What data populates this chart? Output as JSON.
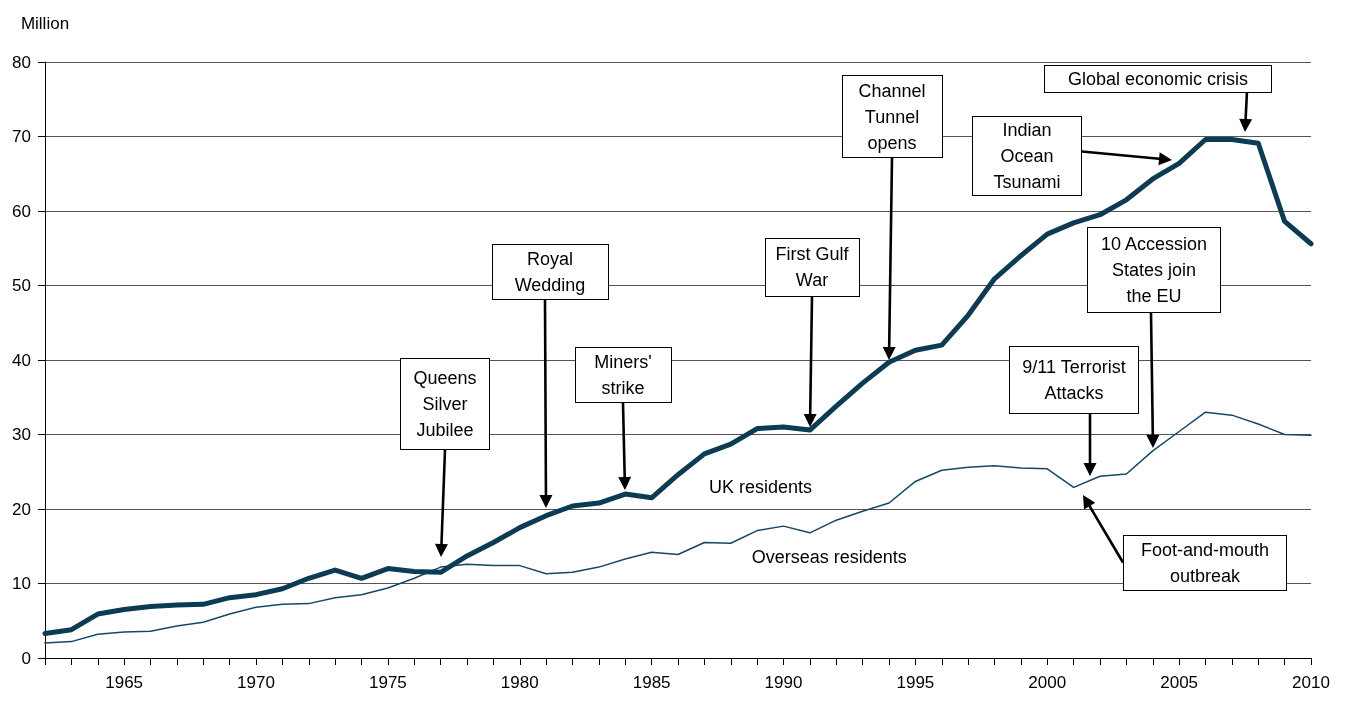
{
  "chart_data": {
    "type": "line",
    "ylabel": "Million",
    "x": [
      1962,
      1963,
      1964,
      1965,
      1966,
      1967,
      1968,
      1969,
      1970,
      1971,
      1972,
      1973,
      1974,
      1975,
      1976,
      1977,
      1978,
      1979,
      1980,
      1981,
      1982,
      1983,
      1984,
      1985,
      1986,
      1987,
      1988,
      1989,
      1990,
      1991,
      1992,
      1993,
      1994,
      1995,
      1996,
      1997,
      1998,
      1999,
      2000,
      2001,
      2002,
      2003,
      2004,
      2005,
      2006,
      2007,
      2008,
      2009,
      2010
    ],
    "series": [
      {
        "name": "UK residents",
        "color": "#0c3b54",
        "values": [
          3.3,
          3.8,
          5.9,
          6.5,
          6.9,
          7.1,
          7.2,
          8.1,
          8.5,
          9.3,
          10.7,
          11.8,
          10.7,
          12.0,
          11.6,
          11.5,
          13.7,
          15.5,
          17.5,
          19.1,
          20.4,
          20.8,
          22.0,
          21.5,
          24.6,
          27.4,
          28.7,
          30.8,
          31.0,
          30.6,
          33.8,
          36.9,
          39.7,
          41.3,
          42.0,
          46.0,
          50.9,
          54.0,
          56.9,
          58.4,
          59.5,
          61.5,
          64.3,
          66.4,
          69.6,
          69.6,
          69.1,
          58.6,
          55.6
        ]
      },
      {
        "name": "Overseas residents",
        "color": "#154866",
        "values": [
          2.0,
          2.2,
          3.2,
          3.5,
          3.6,
          4.3,
          4.8,
          5.9,
          6.8,
          7.2,
          7.3,
          8.1,
          8.5,
          9.4,
          10.7,
          12.2,
          12.6,
          12.4,
          12.4,
          11.3,
          11.5,
          12.2,
          13.3,
          14.2,
          13.9,
          15.5,
          15.4,
          17.1,
          17.7,
          16.8,
          18.5,
          19.7,
          20.8,
          23.7,
          25.2,
          25.6,
          25.8,
          25.5,
          25.4,
          22.9,
          24.4,
          24.7,
          27.8,
          30.4,
          33.0,
          32.6,
          31.4,
          30.0,
          29.9
        ]
      }
    ],
    "xlim": [
      1962,
      2010
    ],
    "xticks": [
      {
        "value": 1962,
        "label": null
      },
      {
        "value": 1963,
        "label": null
      },
      {
        "value": 1964,
        "label": null
      },
      1965,
      {
        "value": 1966,
        "label": null
      },
      {
        "value": 1967,
        "label": null
      },
      {
        "value": 1968,
        "label": null
      },
      {
        "value": 1969,
        "label": null
      },
      1970,
      {
        "value": 1971,
        "label": null
      },
      {
        "value": 1972,
        "label": null
      },
      {
        "value": 1973,
        "label": null
      },
      {
        "value": 1974,
        "label": null
      },
      1975,
      {
        "value": 1976,
        "label": null
      },
      {
        "value": 1977,
        "label": null
      },
      {
        "value": 1978,
        "label": null
      },
      {
        "value": 1979,
        "label": null
      },
      1980,
      {
        "value": 1981,
        "label": null
      },
      {
        "value": 1982,
        "label": null
      },
      {
        "value": 1983,
        "label": null
      },
      {
        "value": 1984,
        "label": null
      },
      1985,
      {
        "value": 1986,
        "label": null
      },
      {
        "value": 1987,
        "label": null
      },
      {
        "value": 1988,
        "label": null
      },
      {
        "value": 1989,
        "label": null
      },
      1990,
      {
        "value": 1991,
        "label": null
      },
      {
        "value": 1992,
        "label": null
      },
      {
        "value": 1993,
        "label": null
      },
      {
        "value": 1994,
        "label": null
      },
      1995,
      {
        "value": 1996,
        "label": null
      },
      {
        "value": 1997,
        "label": null
      },
      {
        "value": 1998,
        "label": null
      },
      {
        "value": 1999,
        "label": null
      },
      2000,
      {
        "value": 2001,
        "label": null
      },
      {
        "value": 2002,
        "label": null
      },
      {
        "value": 2003,
        "label": null
      },
      {
        "value": 2004,
        "label": null
      },
      2005,
      {
        "value": 2006,
        "label": null
      },
      {
        "value": 2007,
        "label": null
      },
      {
        "value": 2008,
        "label": null
      },
      {
        "value": 2009,
        "label": null
      },
      2010
    ],
    "ylim": [
      0,
      80
    ],
    "yticks": [
      0,
      10,
      20,
      30,
      40,
      50,
      60,
      70,
      80
    ],
    "grid": "y",
    "marker": "none",
    "annotations": [
      "Queens Silver Jubilee",
      "Royal Wedding",
      "Miners' strike",
      "First Gulf War",
      "Channel Tunnel opens",
      "Indian Ocean Tsunami",
      "Global economic crisis",
      "10 Accession States join the EU",
      "9/11 Terrorist Attacks",
      "Foot-and-mouth outbreak"
    ]
  }
}
